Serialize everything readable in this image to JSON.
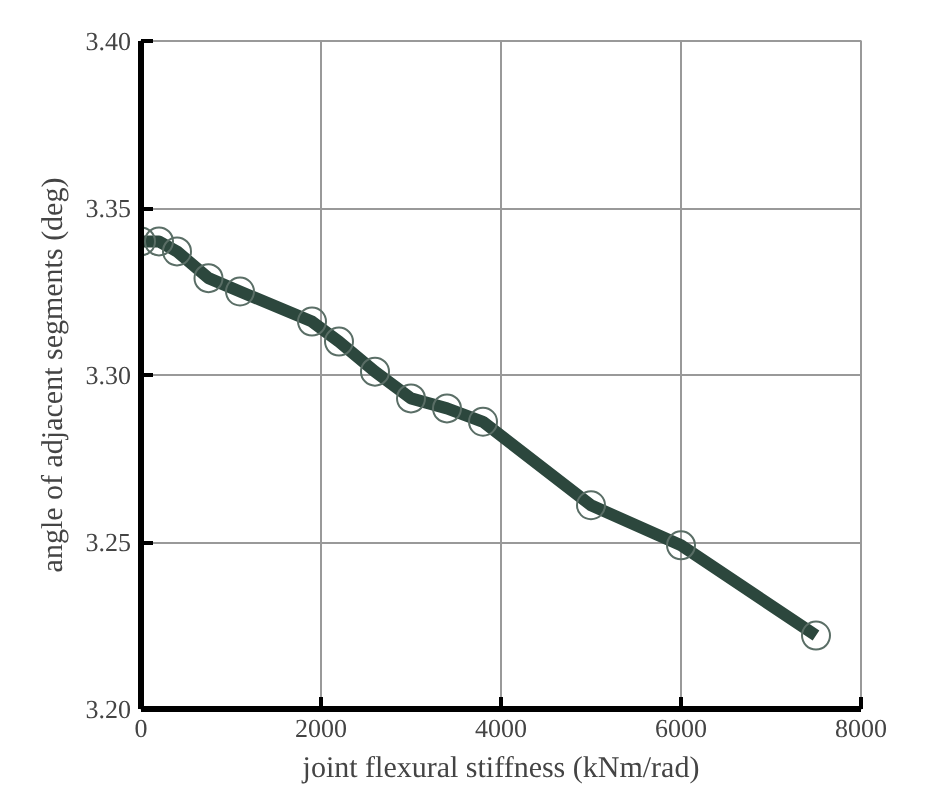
{
  "chart_data": {
    "type": "line",
    "xlabel": "joint flexural stiffness (kNm/rad)",
    "ylabel": "angle of adjacent segments (deg)",
    "x": [
      0,
      200,
      400,
      750,
      1100,
      1900,
      2200,
      2600,
      3000,
      3400,
      3800,
      5000,
      6000,
      7500
    ],
    "series": [
      {
        "color": "#2c473d",
        "values": [
          3.34,
          3.34,
          3.337,
          3.329,
          3.325,
          3.316,
          3.31,
          3.301,
          3.293,
          3.29,
          3.286,
          3.261,
          3.249,
          3.222
        ]
      }
    ],
    "xlim": [
      0,
      8000
    ],
    "xticks": [
      0,
      2000,
      4000,
      6000,
      8000
    ],
    "ylim": [
      3.2,
      3.4
    ],
    "yticks": [
      {
        "value": 3.2,
        "label": "3.20"
      },
      {
        "value": 3.25,
        "label": "3.25"
      },
      {
        "value": 3.3,
        "label": "3.30"
      },
      {
        "value": 3.35,
        "label": "3.35"
      },
      {
        "value": 3.4,
        "label": "3.40"
      }
    ],
    "grid": true,
    "marker": "circle",
    "line_style": "solid"
  }
}
